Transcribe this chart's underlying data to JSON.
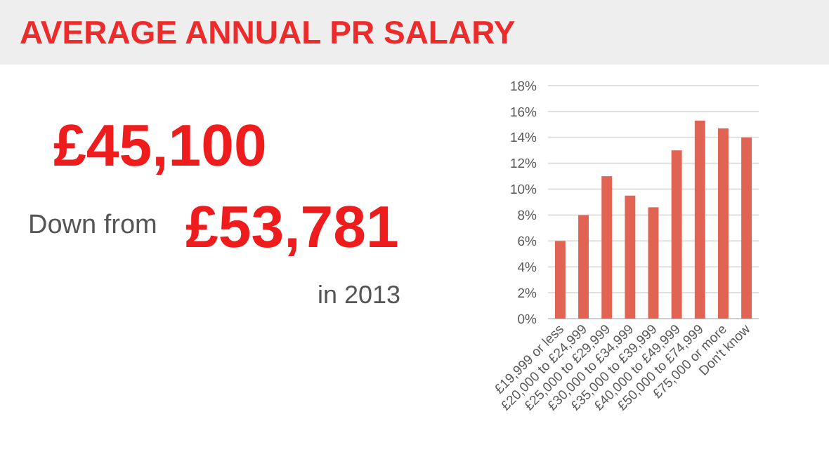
{
  "chart_data": {
    "type": "bar",
    "title": "AVERAGE ANNUAL PR SALARY",
    "annotations": [
      "£45,100",
      "Down from",
      "£53,781",
      "in 2013"
    ],
    "categories": [
      "£19,999 or less",
      "£20,000 to £24,999",
      "£25,000 to £29,999",
      "£30,000 to £34,999",
      "£35,000 to £39,999",
      "£40,000 to £49,999",
      "£50,000 to £74,999",
      "£75,000 or more",
      "Don't know"
    ],
    "values": [
      6,
      8,
      11,
      9.5,
      8.6,
      13,
      15.3,
      14.7,
      14
    ],
    "color": "#e06353",
    "ylim": [
      0,
      18
    ],
    "yticks": [
      {
        "value": 0,
        "label": "0%"
      },
      {
        "value": 2,
        "label": "2%"
      },
      {
        "value": 4,
        "label": "4%"
      },
      {
        "value": 6,
        "label": "6%"
      },
      {
        "value": 8,
        "label": "8%"
      },
      {
        "value": 10,
        "label": "10%"
      },
      {
        "value": 12,
        "label": "12%"
      },
      {
        "value": 14,
        "label": "14%"
      },
      {
        "value": 16,
        "label": "16%"
      },
      {
        "value": 18,
        "label": "18%"
      }
    ],
    "grid": true
  }
}
